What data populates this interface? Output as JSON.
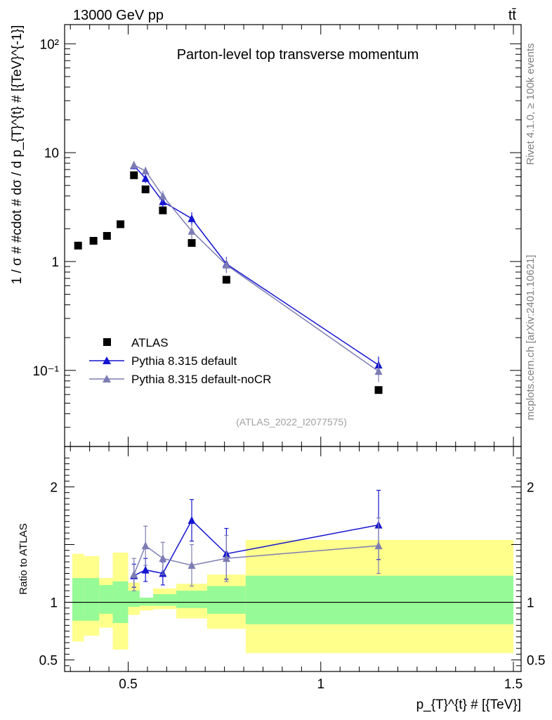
{
  "header": {
    "left": "13000 GeV pp",
    "right": "tt̄"
  },
  "side_labels": {
    "rivet": "Rivet 4.1.0, ≥ 100k events",
    "mcplots": "mcplots.cern.ch [arXiv:2401.10621]"
  },
  "chart_data": [
    {
      "type": "scatter",
      "panel": "main",
      "title": "Parton-level top transverse momentum",
      "analysis_tag": "(ATLAS_2022_I2077575)",
      "ylabel": "1 / σ # #cdot # dσ / d p_{T}^{t} # [{TeV}^{-1}]",
      "yscale": "log",
      "ylim": [
        0.02,
        150
      ],
      "xlim": [
        0.335,
        1.52
      ],
      "yticklabels": [
        {
          "value": 0.1,
          "label": "10⁻¹"
        },
        {
          "value": 1,
          "label": "1"
        },
        {
          "value": 10,
          "label": "10"
        },
        {
          "value": 100,
          "label": "10²"
        }
      ],
      "legend_position": "bottom-left",
      "series": [
        {
          "name": "ATLAS",
          "style": "data",
          "color": "#000000",
          "x": [
            0.37,
            0.41,
            0.445,
            0.48,
            0.515,
            0.545,
            0.59,
            0.665,
            0.755,
            1.15
          ],
          "y": [
            1.4,
            1.55,
            1.72,
            2.2,
            6.2,
            4.6,
            2.95,
            1.48,
            0.68,
            0.066
          ]
        },
        {
          "name": "Pythia 8.315 default",
          "style": "line",
          "color": "#1414d2",
          "x": [
            0.515,
            0.545,
            0.59,
            0.665,
            0.755,
            1.15
          ],
          "y": [
            7.6,
            5.8,
            3.55,
            2.48,
            0.95,
            0.112
          ],
          "err": [
            0.6,
            0.55,
            0.4,
            0.35,
            0.15,
            0.022
          ]
        },
        {
          "name": "Pythia 8.315 default-noCR",
          "style": "line",
          "color": "#7d7db4",
          "x": [
            0.515,
            0.545,
            0.59,
            0.665,
            0.755,
            1.15
          ],
          "y": [
            7.7,
            6.8,
            4.0,
            1.9,
            0.93,
            0.098
          ],
          "err": [
            0.65,
            0.6,
            0.45,
            0.3,
            0.15,
            0.02
          ]
        }
      ]
    },
    {
      "type": "line",
      "panel": "ratio",
      "ylabel": "Ratio to ATLAS",
      "xlabel": "p_{T}^{t} # [{TeV}]",
      "xlim": [
        0.335,
        1.52
      ],
      "ylim": [
        0.4,
        2.35
      ],
      "xticklabels": [
        {
          "value": 0.5,
          "label": "0.5"
        },
        {
          "value": 1,
          "label": "1"
        },
        {
          "value": 1.5,
          "label": "1.5"
        }
      ],
      "yticklabels": [
        {
          "value": 0.5,
          "label": "0.5"
        },
        {
          "value": 1,
          "label": "1"
        },
        {
          "value": 2,
          "label": "2"
        }
      ],
      "bands": {
        "bins": [
          [
            0.355,
            0.385
          ],
          [
            0.385,
            0.425
          ],
          [
            0.425,
            0.46
          ],
          [
            0.46,
            0.5
          ],
          [
            0.5,
            0.53
          ],
          [
            0.53,
            0.565
          ],
          [
            0.565,
            0.625
          ],
          [
            0.625,
            0.705
          ],
          [
            0.705,
            0.805
          ],
          [
            0.805,
            1.5
          ]
        ],
        "outer": [
          [
            0.66,
            1.42
          ],
          [
            0.71,
            1.4
          ],
          [
            0.78,
            1.21
          ],
          [
            0.59,
            1.43
          ],
          [
            0.89,
            1.17
          ],
          [
            0.93,
            1.04
          ],
          [
            0.94,
            1.12
          ],
          [
            0.86,
            1.16
          ],
          [
            0.77,
            1.24
          ],
          [
            0.56,
            1.54
          ]
        ],
        "inner": [
          [
            0.84,
            1.21
          ],
          [
            0.84,
            1.21
          ],
          [
            0.9,
            1.15
          ],
          [
            0.82,
            1.18
          ],
          [
            0.96,
            1.1
          ],
          [
            0.97,
            1.04
          ],
          [
            0.97,
            1.07
          ],
          [
            0.95,
            1.1
          ],
          [
            0.9,
            1.14
          ],
          [
            0.81,
            1.23
          ]
        ],
        "outer_color": "#ffff8c",
        "inner_color": "#96fa96"
      },
      "reference_line": 1,
      "series": [
        {
          "name": "Pythia 8.315 default",
          "color": "#1414d2",
          "x": [
            0.515,
            0.545,
            0.59,
            0.665,
            0.755,
            1.15
          ],
          "y": [
            1.23,
            1.28,
            1.25,
            1.71,
            1.42,
            1.67
          ],
          "err": [
            0.1,
            0.1,
            0.1,
            0.18,
            0.22,
            0.3
          ]
        },
        {
          "name": "Pythia 8.315 default-noCR",
          "color": "#7d7db4",
          "x": [
            0.515,
            0.545,
            0.59,
            0.665,
            0.755,
            1.15
          ],
          "y": [
            1.24,
            1.49,
            1.38,
            1.32,
            1.38,
            1.49
          ],
          "err": [
            0.14,
            0.17,
            0.14,
            0.18,
            0.2,
            0.24
          ]
        }
      ]
    }
  ]
}
